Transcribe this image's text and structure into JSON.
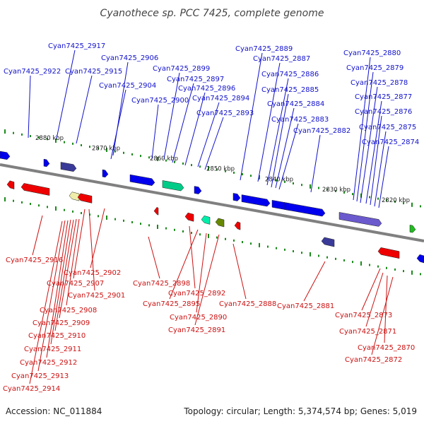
{
  "title": "Cyanothece sp. PCC 7425, complete genome",
  "accession": "Accession: NC_011884",
  "summary": "Topology: circular; Length: 5,374,574 bp; Genes: 5,019",
  "scale_labels": [
    "2880 kbp",
    "2870 kbp",
    "2860 kbp",
    "2850 kbp",
    "2840 kbp",
    "2830 kbp",
    "2820 kbp"
  ],
  "forward_genes": [
    "Cyan7425_2922",
    "Cyan7425_2917",
    "Cyan7425_2915",
    "Cyan7425_2906",
    "Cyan7425_2904",
    "Cyan7425_2899",
    "Cyan7425_2897",
    "Cyan7425_2896",
    "Cyan7425_2894",
    "Cyan7425_2900",
    "Cyan7425_2893",
    "Cyan7425_2889",
    "Cyan7425_2887",
    "Cyan7425_2886",
    "Cyan7425_2885",
    "Cyan7425_2884",
    "Cyan7425_2883",
    "Cyan7425_2882",
    "Cyan7425_2880",
    "Cyan7425_2879",
    "Cyan7425_2878",
    "Cyan7425_2877",
    "Cyan7425_2876",
    "Cyan7425_2875",
    "Cyan7425_2874"
  ],
  "reverse_genes": [
    "Cyan7425_2916",
    "Cyan7425_2902",
    "Cyan7425_2907",
    "Cyan7425_2901",
    "Cyan7425_2898",
    "Cyan7425_2908",
    "Cyan7425_2909",
    "Cyan7425_2910",
    "Cyan7425_2911",
    "Cyan7425_2912",
    "Cyan7425_2913",
    "Cyan7425_2914",
    "Cyan7425_2892",
    "Cyan7425_2895",
    "Cyan7425_2890",
    "Cyan7425_2891",
    "Cyan7425_2888",
    "Cyan7425_2881",
    "Cyan7425_2873",
    "Cyan7425_2871",
    "Cyan7425_2870",
    "Cyan7425_2872"
  ],
  "colors": {
    "forward_label": "#1111cc",
    "reverse_label": "#cc1111",
    "forward_gene": "#0000ee",
    "reverse_gene": "#ee0000",
    "backbone": "#808080",
    "tick": "#1a8a1a"
  }
}
